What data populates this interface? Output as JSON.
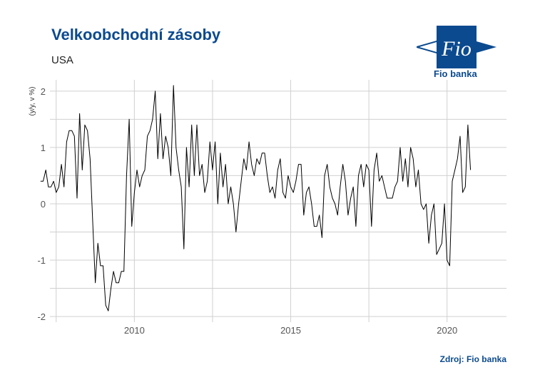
{
  "header": {
    "title": "Velkoobchodní zásoby",
    "subtitle": "USA"
  },
  "logo": {
    "mark_text": "Fio",
    "brand": "Fio banka"
  },
  "footer": {
    "source": "Zdroj: Fio banka"
  },
  "colors": {
    "title": "#0b4a8f",
    "line": "#000000",
    "grid": "#d0d0d0"
  },
  "chart_data": {
    "type": "line",
    "ylabel": "(y/y, v %)",
    "xlim": [
      2007.3,
      2021.9
    ],
    "ylim": [
      -2.1,
      2.2
    ],
    "yticks": [
      -2,
      -1,
      0,
      1,
      2
    ],
    "xticks": [
      2010,
      2015,
      2020
    ],
    "grid": true,
    "series": [
      {
        "start_year": 2007.0,
        "step_years": 0.0833333,
        "values": [
          0.4,
          0.4,
          0.6,
          0.3,
          0.3,
          0.4,
          0.2,
          0.3,
          0.7,
          0.3,
          1.1,
          1.3,
          1.3,
          1.2,
          0.1,
          1.6,
          0.6,
          1.4,
          1.3,
          0.8,
          -0.3,
          -1.4,
          -0.7,
          -1.1,
          -1.1,
          -1.8,
          -1.9,
          -1.5,
          -1.2,
          -1.4,
          -1.4,
          -1.2,
          -1.2,
          0.5,
          1.5,
          -0.4,
          0.2,
          0.6,
          0.3,
          0.5,
          0.6,
          1.2,
          1.3,
          1.5,
          2.0,
          0.8,
          1.6,
          0.8,
          1.2,
          1.0,
          0.5,
          2.1,
          1.0,
          0.6,
          0.3,
          -0.8,
          1.0,
          0.3,
          1.4,
          0.5,
          1.4,
          0.5,
          0.7,
          0.2,
          0.4,
          1.1,
          0.6,
          1.1,
          0.0,
          0.9,
          0.3,
          0.7,
          0.0,
          0.3,
          0.0,
          -0.5,
          0.0,
          0.4,
          0.8,
          0.6,
          1.1,
          0.7,
          0.5,
          0.8,
          0.7,
          0.9,
          0.9,
          0.5,
          0.2,
          0.3,
          0.1,
          0.6,
          0.8,
          0.2,
          0.1,
          0.5,
          0.3,
          0.2,
          0.4,
          0.7,
          0.7,
          -0.2,
          0.2,
          0.3,
          0.0,
          -0.4,
          -0.4,
          -0.2,
          -0.6,
          0.5,
          0.7,
          0.3,
          0.1,
          0.0,
          -0.2,
          0.3,
          0.7,
          0.4,
          -0.2,
          0.1,
          0.3,
          -0.4,
          0.5,
          0.7,
          0.3,
          0.7,
          0.6,
          -0.4,
          0.6,
          0.9,
          0.4,
          0.5,
          0.3,
          0.1,
          0.1,
          0.1,
          0.3,
          0.4,
          1.0,
          0.4,
          0.8,
          0.3,
          1.0,
          0.8,
          0.3,
          0.6,
          0.0,
          -0.1,
          0.0,
          -0.7,
          -0.2,
          0.0,
          -0.9,
          -0.8,
          -0.7,
          0.0,
          -1.0,
          -1.1,
          0.4,
          0.6,
          0.8,
          1.2,
          0.2,
          0.3,
          1.4,
          0.6
        ]
      }
    ]
  }
}
